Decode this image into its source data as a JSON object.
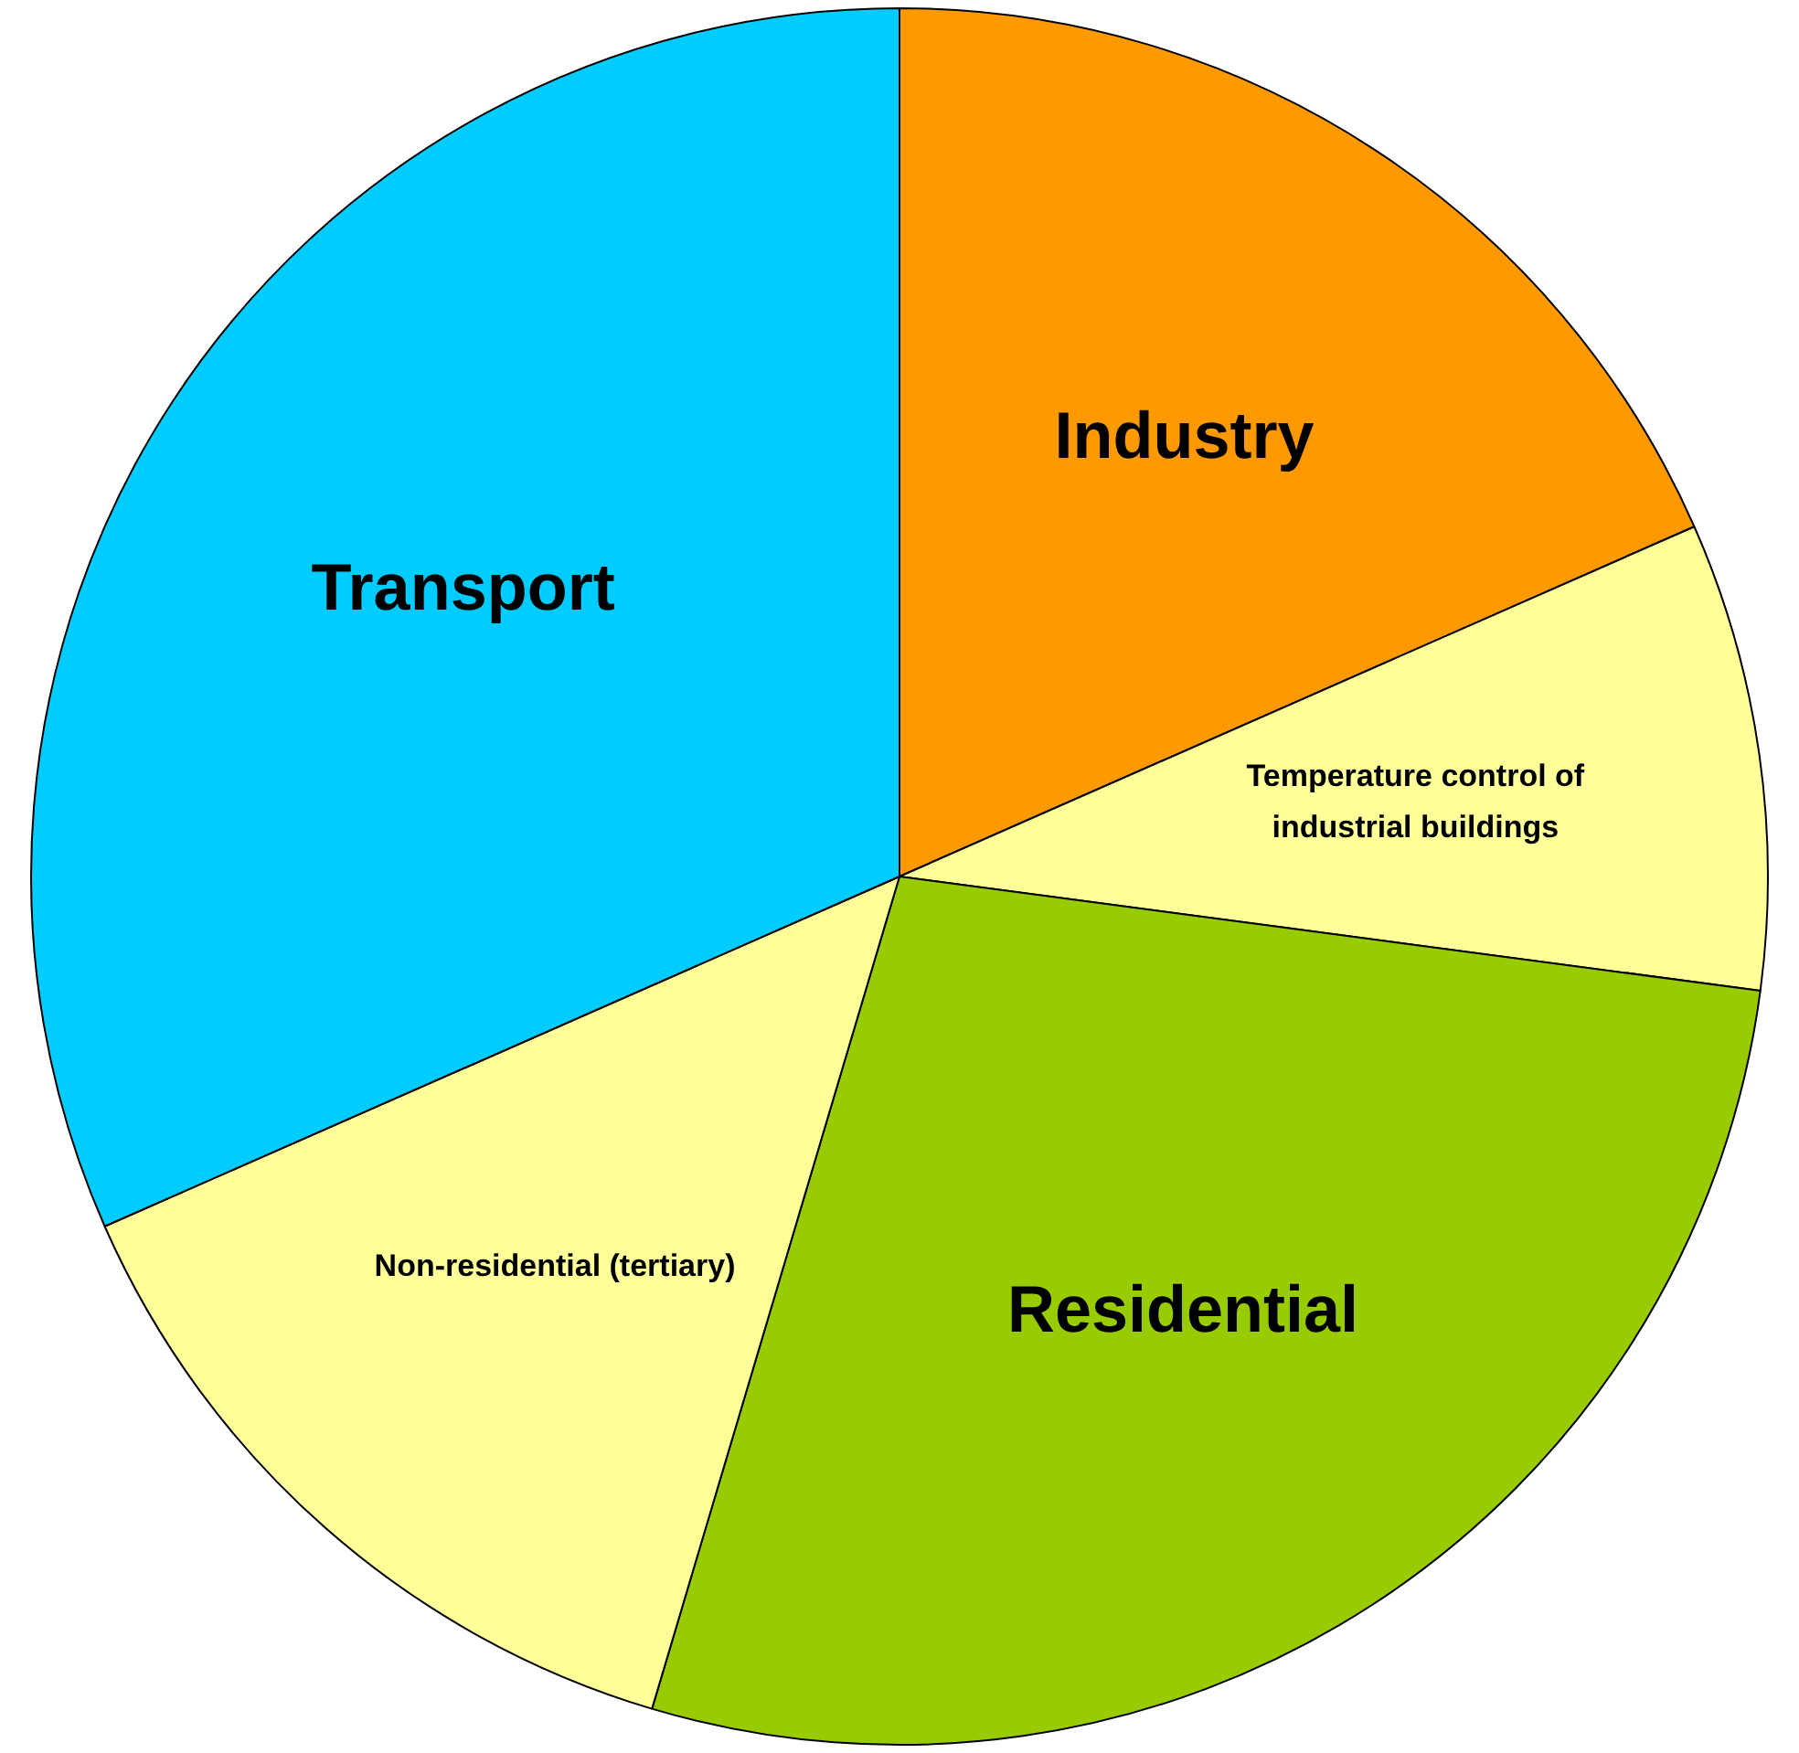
{
  "chart_data": {
    "type": "pie",
    "categories": [
      "Industry",
      "Temperature control of industrial buildings",
      "Residential",
      "Non-residential (tertiary)",
      "Transport"
    ],
    "values": [
      18.4,
      8.7,
      27.5,
      13.8,
      31.6
    ],
    "colors": [
      "#ff9900",
      "#ffff99",
      "#99cc00",
      "#ffff99",
      "#00ccff"
    ],
    "legend": false
  }
}
